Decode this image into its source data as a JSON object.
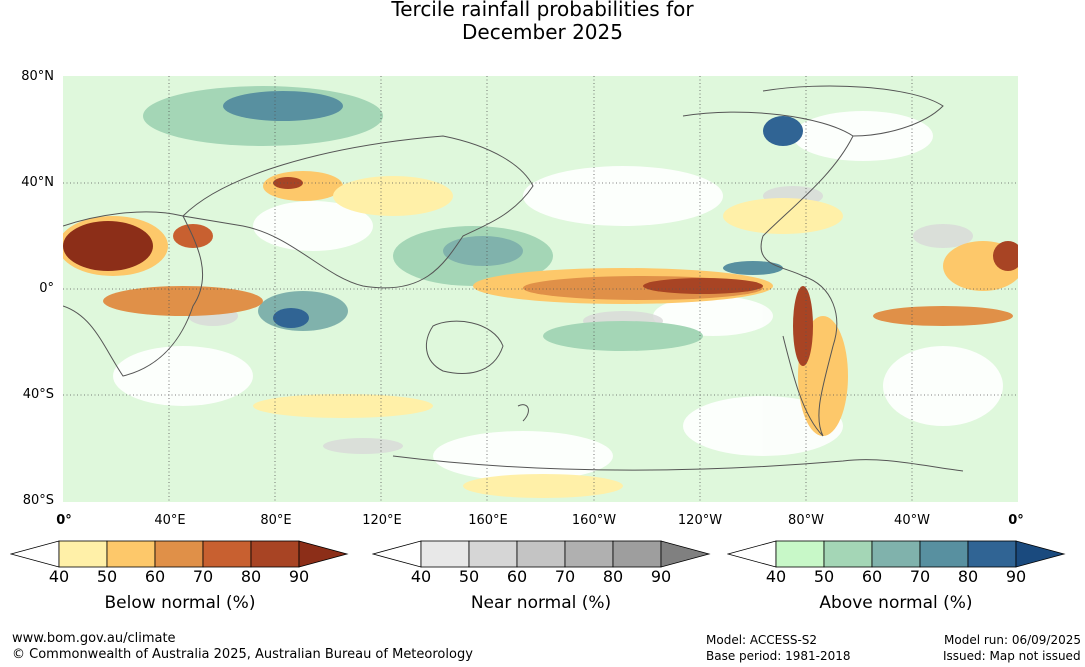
{
  "title_line1": "Tercile rainfall probabilities for",
  "title_line2": "December 2025",
  "lat_ticks": [
    "80°N",
    "40°N",
    "0°",
    "40°S",
    "80°S"
  ],
  "lon_ticks": [
    "0°",
    "40°E",
    "80°E",
    "120°E",
    "160°E",
    "160°W",
    "120°W",
    "80°W",
    "40°W",
    "0°"
  ],
  "colorbars": [
    {
      "name": "below",
      "title": "Below normal (%)",
      "labels": [
        "40",
        "50",
        "60",
        "70",
        "80",
        "90"
      ],
      "colors": [
        "#ffffff",
        "#fff0a8",
        "#fdc86a",
        "#e09048",
        "#c86030",
        "#a84424",
        "#8c2e18"
      ]
    },
    {
      "name": "near",
      "title": "Near normal (%)",
      "labels": [
        "40",
        "50",
        "60",
        "70",
        "80",
        "90"
      ],
      "colors": [
        "#ffffff",
        "#e8e8e8",
        "#d6d6d6",
        "#c4c4c4",
        "#b0b0b0",
        "#9e9e9e",
        "#808080"
      ]
    },
    {
      "name": "above",
      "title": "Above normal (%)",
      "labels": [
        "40",
        "50",
        "60",
        "70",
        "80",
        "90"
      ],
      "colors": [
        "#ffffff",
        "#c8f8c8",
        "#a4d6b6",
        "#80b2ac",
        "#5890a0",
        "#306494",
        "#1a4a7e"
      ]
    }
  ],
  "footer": {
    "url": "www.bom.gov.au/climate",
    "copyright": "© Commonwealth of Australia 2025, Australian Bureau of Meteorology",
    "model": "Model: ACCESS-S2",
    "base_period": "Base period: 1981-2018",
    "model_run": "Model run: 06/09/2025",
    "issued": "Issued: Map not issued"
  }
}
